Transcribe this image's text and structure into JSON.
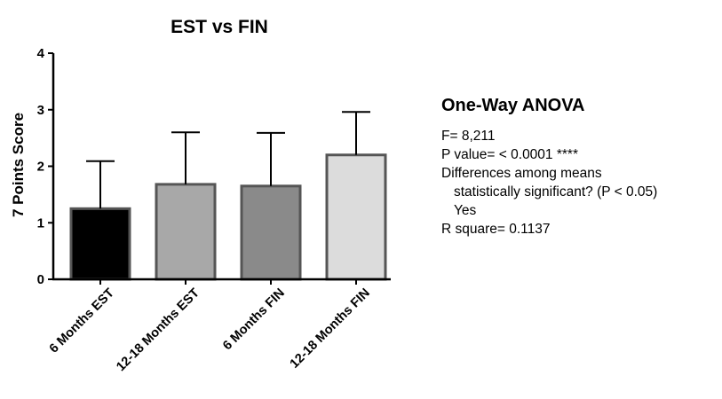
{
  "chart_data": {
    "type": "bar",
    "title": "EST vs FIN",
    "ylabel": "7 Points Score",
    "xlabel": "",
    "ylim": [
      0,
      4
    ],
    "yticks": [
      "0",
      "1",
      "2",
      "3",
      "4"
    ],
    "categories": [
      "6 Months EST",
      "12-18 Months EST",
      "6 Months FIN",
      "12-18 Months FIN"
    ],
    "values": [
      1.25,
      1.68,
      1.65,
      2.2
    ],
    "error_upper": [
      2.09,
      2.6,
      2.59,
      2.96
    ],
    "colors": [
      "#000000",
      "#a8a8a8",
      "#8a8a8a",
      "#dcdcdc"
    ],
    "grid": false,
    "legend": "none"
  },
  "stats": {
    "title": "One-Way ANOVA",
    "f_value": "F= 8,211",
    "p_value": "P value= < 0.0001 ****",
    "differences_heading": "Differences among means",
    "significance_question": "statistically significant? (P < 0.05)",
    "significance_answer": "Yes",
    "r_square": "R square=  0.1137"
  }
}
